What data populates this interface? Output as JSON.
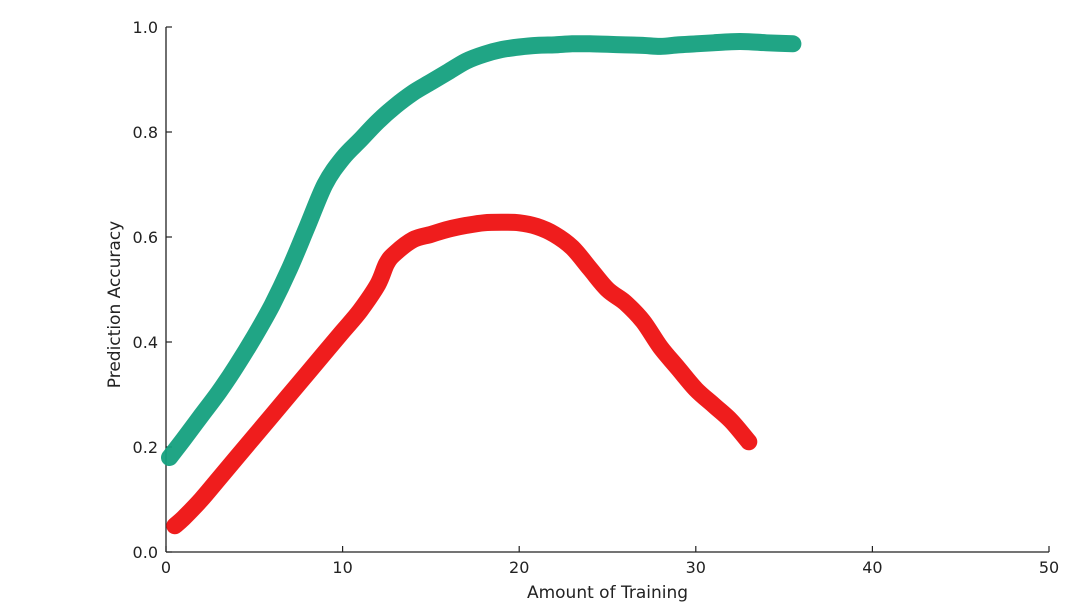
{
  "chart_data": {
    "type": "line",
    "title": "",
    "xlabel": "Amount of Training",
    "ylabel": "Prediction Accuracy",
    "xlim": [
      0,
      50
    ],
    "ylim": [
      0,
      1.0
    ],
    "xticks": [
      0,
      10,
      20,
      30,
      40,
      50
    ],
    "yticks": [
      0.0,
      0.2,
      0.4,
      0.6,
      0.8,
      1.0
    ],
    "xtick_labels": [
      "0",
      "10",
      "20",
      "30",
      "40",
      "50"
    ],
    "ytick_labels": [
      "0.0",
      "0.2",
      "0.4",
      "0.6",
      "0.8",
      "1.0"
    ],
    "grid": false,
    "legend": "none",
    "series": [
      {
        "color": "#14a07e",
        "x": [
          0.2,
          1,
          2,
          3,
          4,
          5,
          6,
          7,
          8,
          9,
          10,
          11,
          12,
          13,
          14,
          15,
          16,
          17,
          18,
          19,
          20,
          21,
          22,
          23,
          24,
          25,
          26,
          27,
          28,
          29,
          30,
          31,
          32,
          33,
          34,
          35.5
        ],
        "y": [
          0.18,
          0.215,
          0.26,
          0.305,
          0.355,
          0.41,
          0.47,
          0.54,
          0.62,
          0.7,
          0.75,
          0.785,
          0.82,
          0.85,
          0.875,
          0.895,
          0.915,
          0.935,
          0.948,
          0.957,
          0.962,
          0.965,
          0.966,
          0.968,
          0.968,
          0.967,
          0.966,
          0.965,
          0.963,
          0.966,
          0.968,
          0.97,
          0.972,
          0.972,
          0.97,
          0.968
        ]
      },
      {
        "color": "#ee1111",
        "x": [
          0.5,
          1,
          2,
          3,
          4,
          5,
          6,
          7,
          8,
          9,
          10,
          11,
          12,
          12.5,
          13,
          14,
          15,
          16,
          17,
          18,
          19,
          20,
          21,
          22,
          23,
          24,
          25,
          26,
          27,
          28,
          29,
          30,
          31,
          32,
          33
        ],
        "y": [
          0.05,
          0.065,
          0.1,
          0.14,
          0.18,
          0.22,
          0.26,
          0.3,
          0.34,
          0.38,
          0.42,
          0.46,
          0.51,
          0.55,
          0.57,
          0.595,
          0.605,
          0.615,
          0.622,
          0.627,
          0.628,
          0.627,
          0.62,
          0.605,
          0.58,
          0.54,
          0.5,
          0.475,
          0.44,
          0.39,
          0.35,
          0.31,
          0.28,
          0.25,
          0.21
        ]
      }
    ]
  }
}
